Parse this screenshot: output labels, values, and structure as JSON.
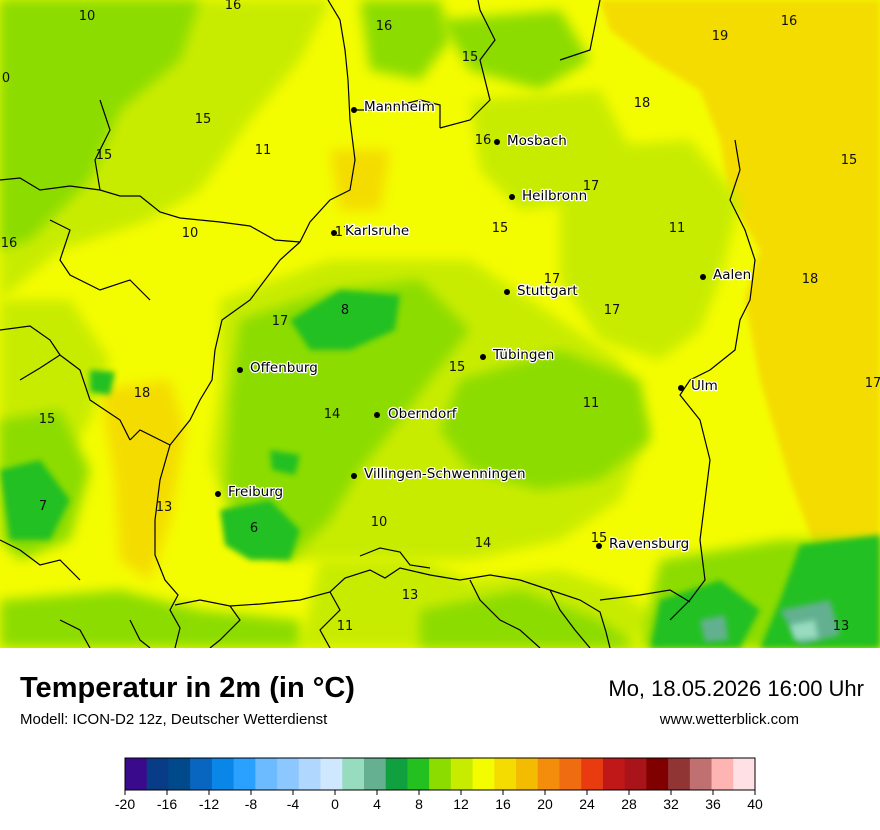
{
  "header": {
    "title": "Temperatur in 2m (in °C)",
    "subtitle": "Modell: ICON-D2 12z, Deutscher Wetterdienst",
    "datetime": "Mo, 18.05.2026 16:00 Uhr",
    "website": "www.wetterblick.com"
  },
  "map": {
    "cities": [
      {
        "name": "Mannheim"
      },
      {
        "name": "Mosbach"
      },
      {
        "name": "Heilbronn"
      },
      {
        "name": "Karlsruhe"
      },
      {
        "name": "Stuttgart"
      },
      {
        "name": "Aalen"
      },
      {
        "name": "Tübingen"
      },
      {
        "name": "Offenburg"
      },
      {
        "name": "Ulm"
      },
      {
        "name": "Oberndorf"
      },
      {
        "name": "Villingen-Schwenningen"
      },
      {
        "name": "Freiburg"
      },
      {
        "name": "Ravensburg"
      }
    ],
    "temperature_labels": [
      "10",
      "16",
      "16",
      "15",
      "16",
      "19",
      "18",
      "0",
      "15",
      "11",
      "15",
      "16",
      "15",
      "17",
      "17",
      "10",
      "16",
      "11",
      "18",
      "15",
      "17",
      "8",
      "17",
      "17",
      "15",
      "18",
      "15",
      "14",
      "11",
      "17",
      "13",
      "7",
      "6",
      "10",
      "14",
      "15",
      "13",
      "11",
      "13"
    ]
  },
  "legend": {
    "ticks": [
      "-20",
      "-16",
      "-12",
      "-8",
      "-4",
      "0",
      "4",
      "8",
      "12",
      "16",
      "20",
      "24",
      "28",
      "32",
      "36",
      "40"
    ],
    "colors": [
      "#3a0a8c",
      "#083c86",
      "#004a8c",
      "#0866c0",
      "#0a86e8",
      "#2aa0ff",
      "#6cbaff",
      "#8cc8ff",
      "#b0d8ff",
      "#d0e8ff",
      "#98dcc0",
      "#64b090",
      "#10a040",
      "#24c020",
      "#8cdc00",
      "#c8ec00",
      "#f4fc00",
      "#f4dc00",
      "#f4bc00",
      "#f48c0c",
      "#f06c10",
      "#e83c10",
      "#c01818",
      "#a8141a",
      "#800000",
      "#903434",
      "#c07070",
      "#ffb4b4",
      "#ffe0e4"
    ]
  }
}
